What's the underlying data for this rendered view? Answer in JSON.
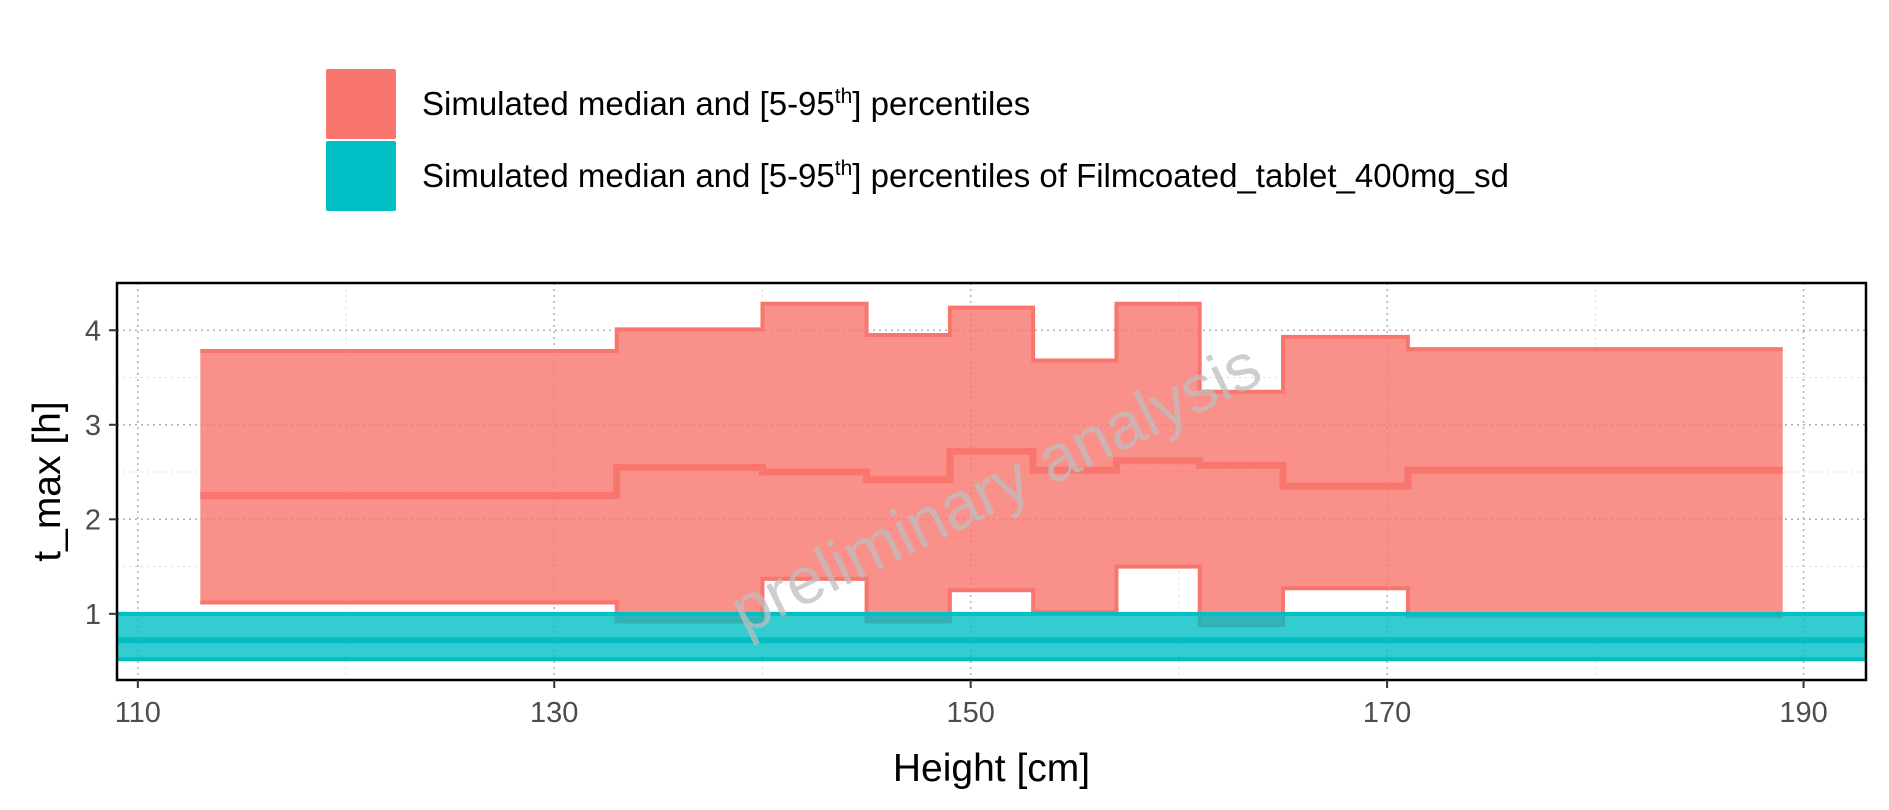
{
  "legend": {
    "items": [
      {
        "prefix": "Simulated median and [5-95",
        "sup": "th",
        "suffix": "] percentiles",
        "color": "#F8766D"
      },
      {
        "prefix": "Simulated median and [5-95",
        "sup": "th",
        "suffix": "] percentiles of Filmcoated_tablet_400mg_sd",
        "color": "#00BFC4"
      }
    ]
  },
  "chart_data": {
    "type": "area",
    "xlabel": "Height [cm]",
    "ylabel": "t_max [h]",
    "xlim": [
      109,
      193
    ],
    "ylim": [
      0.3,
      4.5
    ],
    "x_ticks": [
      "110",
      "130",
      "150",
      "170",
      "190"
    ],
    "y_ticks": [
      "1",
      "2",
      "3",
      "4"
    ],
    "grid": true,
    "legend_position": "top",
    "watermark": "preliminary analysis",
    "series": [
      {
        "name": "Simulated median and [5-95th] percentiles",
        "color": "#F8766D",
        "kind": "binned-step",
        "bins": [
          {
            "x0": 113,
            "x1": 133,
            "median": 2.25,
            "lower": 1.12,
            "upper": 3.78
          },
          {
            "x0": 133,
            "x1": 140,
            "median": 2.55,
            "lower": 0.92,
            "upper": 4.01
          },
          {
            "x0": 140,
            "x1": 145,
            "median": 2.5,
            "lower": 1.37,
            "upper": 4.28
          },
          {
            "x0": 145,
            "x1": 149,
            "median": 2.42,
            "lower": 0.92,
            "upper": 3.95
          },
          {
            "x0": 149,
            "x1": 153,
            "median": 2.72,
            "lower": 1.25,
            "upper": 4.24
          },
          {
            "x0": 153,
            "x1": 157,
            "median": 2.52,
            "lower": 1.02,
            "upper": 3.68
          },
          {
            "x0": 157,
            "x1": 161,
            "median": 2.62,
            "lower": 1.5,
            "upper": 4.28
          },
          {
            "x0": 161,
            "x1": 165,
            "median": 2.57,
            "lower": 0.88,
            "upper": 3.35
          },
          {
            "x0": 165,
            "x1": 171,
            "median": 2.35,
            "lower": 1.27,
            "upper": 3.93
          },
          {
            "x0": 171,
            "x1": 189,
            "median": 2.52,
            "lower": 0.98,
            "upper": 3.8
          }
        ]
      },
      {
        "name": "Simulated median and [5-95th] percentiles of Filmcoated_tablet_400mg_sd",
        "color": "#00BFC4",
        "kind": "band",
        "x_range": [
          109,
          193
        ],
        "median": 0.72,
        "lower": 0.52,
        "upper": 1.0
      }
    ]
  }
}
